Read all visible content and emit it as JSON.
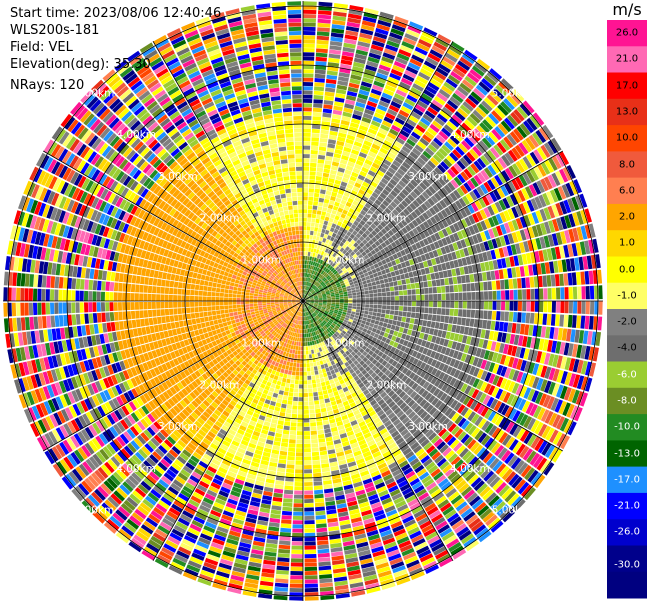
{
  "header": {
    "start_time": "Start time: 2023/08/06 12:40:46",
    "instrument": "WLS200s-181",
    "field": "Field: VEL",
    "elevation": "Elevation(deg): 35.30",
    "nrays": "NRays: 120"
  },
  "chart_data": {
    "type": "ppi",
    "field": "VEL",
    "colorbar": {
      "unit": "m/s",
      "ticks": [
        "26.0",
        "21.0",
        "17.0",
        "13.0",
        "10.0",
        "8.0",
        "6.0",
        "2.0",
        "1.0",
        "0.0",
        "-1.0",
        "-2.0",
        "-4.0",
        "-6.0",
        "-8.0",
        "-10.0",
        "-13.0",
        "-17.0",
        "-21.0",
        "-26.0",
        "-30.0"
      ],
      "colors": [
        "#ff1493",
        "#ff69b4",
        "#ff0000",
        "#e83018",
        "#ff4500",
        "#f05a3c",
        "#ff7f50",
        "#ffa500",
        "#ffd700",
        "#ffff00",
        "#ffff66",
        "#808080",
        "#6e6e6e",
        "#9acd32",
        "#6b8e23",
        "#228b22",
        "#006400",
        "#1e90ff",
        "#0000ff",
        "#0000cd",
        "#00008b",
        "#000080"
      ]
    },
    "range_rings_km": [
      1.0,
      2.0,
      3.0,
      4.0,
      5.0
    ],
    "ring_labels": [
      "1.00km",
      "2.00km",
      "3.00km",
      "4.00km",
      "5.00km"
    ]
  }
}
